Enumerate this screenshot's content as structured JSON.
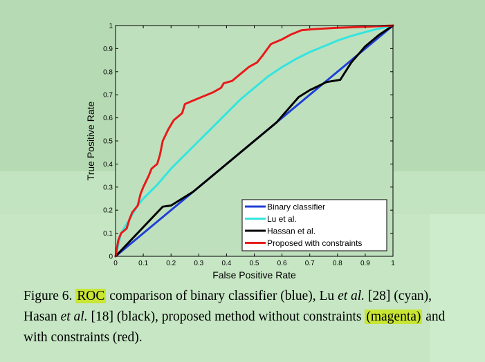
{
  "chart_data": {
    "type": "line",
    "xlabel": "False Positive Rate",
    "ylabel": "True Positive Rate",
    "xlim": [
      0,
      1
    ],
    "ylim": [
      0,
      1
    ],
    "xticks": [
      "0",
      "0.1",
      "0.2",
      "0.3",
      "0.4",
      "0.5",
      "0.6",
      "0.7",
      "0.8",
      "0.9",
      "1"
    ],
    "yticks": [
      "0",
      "0.1",
      "0.2",
      "0.3",
      "0.4",
      "0.5",
      "0.6",
      "0.7",
      "0.8",
      "0.9",
      "1"
    ],
    "grid": false,
    "legend_position": "bottom-right",
    "series": [
      {
        "name": "Binary classifier",
        "color": "#1f3fd6",
        "points": [
          [
            0,
            0
          ],
          [
            1,
            1
          ]
        ]
      },
      {
        "name": "Lu et al.",
        "color": "#33e5e0",
        "points": [
          [
            0,
            0
          ],
          [
            0.02,
            0.1
          ],
          [
            0.05,
            0.16
          ],
          [
            0.08,
            0.22
          ],
          [
            0.1,
            0.25
          ],
          [
            0.15,
            0.31
          ],
          [
            0.2,
            0.38
          ],
          [
            0.25,
            0.44
          ],
          [
            0.3,
            0.5
          ],
          [
            0.35,
            0.56
          ],
          [
            0.4,
            0.62
          ],
          [
            0.45,
            0.68
          ],
          [
            0.5,
            0.73
          ],
          [
            0.55,
            0.78
          ],
          [
            0.6,
            0.82
          ],
          [
            0.65,
            0.855
          ],
          [
            0.7,
            0.885
          ],
          [
            0.75,
            0.91
          ],
          [
            0.8,
            0.935
          ],
          [
            0.85,
            0.955
          ],
          [
            0.9,
            0.972
          ],
          [
            0.95,
            0.987
          ],
          [
            1,
            1
          ]
        ]
      },
      {
        "name": "Hassan et al.",
        "color": "#000000",
        "points": [
          [
            0,
            0
          ],
          [
            0.17,
            0.215
          ],
          [
            0.2,
            0.22
          ],
          [
            0.28,
            0.28
          ],
          [
            0.38,
            0.38
          ],
          [
            0.48,
            0.48
          ],
          [
            0.58,
            0.58
          ],
          [
            0.66,
            0.69
          ],
          [
            0.7,
            0.72
          ],
          [
            0.76,
            0.755
          ],
          [
            0.81,
            0.765
          ],
          [
            0.85,
            0.84
          ],
          [
            0.9,
            0.91
          ],
          [
            0.95,
            0.96
          ],
          [
            1,
            1
          ]
        ]
      },
      {
        "name": "Proposed with constraints",
        "color": "#e81a1a",
        "points": [
          [
            0,
            0
          ],
          [
            0.01,
            0.07
          ],
          [
            0.02,
            0.1
          ],
          [
            0.04,
            0.12
          ],
          [
            0.05,
            0.16
          ],
          [
            0.06,
            0.19
          ],
          [
            0.08,
            0.22
          ],
          [
            0.09,
            0.27
          ],
          [
            0.1,
            0.3
          ],
          [
            0.12,
            0.35
          ],
          [
            0.13,
            0.38
          ],
          [
            0.15,
            0.4
          ],
          [
            0.16,
            0.44
          ],
          [
            0.17,
            0.5
          ],
          [
            0.19,
            0.55
          ],
          [
            0.21,
            0.59
          ],
          [
            0.22,
            0.6
          ],
          [
            0.24,
            0.62
          ],
          [
            0.25,
            0.66
          ],
          [
            0.28,
            0.675
          ],
          [
            0.31,
            0.69
          ],
          [
            0.33,
            0.7
          ],
          [
            0.35,
            0.71
          ],
          [
            0.38,
            0.73
          ],
          [
            0.39,
            0.75
          ],
          [
            0.42,
            0.76
          ],
          [
            0.44,
            0.78
          ],
          [
            0.46,
            0.8
          ],
          [
            0.48,
            0.82
          ],
          [
            0.51,
            0.84
          ],
          [
            0.53,
            0.87
          ],
          [
            0.56,
            0.92
          ],
          [
            0.6,
            0.94
          ],
          [
            0.63,
            0.96
          ],
          [
            0.67,
            0.98
          ],
          [
            0.72,
            0.985
          ],
          [
            0.8,
            0.99
          ],
          [
            0.9,
            0.995
          ],
          [
            1,
            1
          ]
        ]
      }
    ]
  },
  "caption": {
    "prefix": "Figure 6.",
    "highlight1": "ROC",
    "part1": "comparison of binary classifier (blue), Lu",
    "et1": "et al.",
    "part2": "[28] (cyan), Hasan",
    "et2": "et al.",
    "part3": "[18] (black), proposed method without constraints",
    "highlight2": "(magenta)",
    "part4": "and with constraints (red)."
  }
}
